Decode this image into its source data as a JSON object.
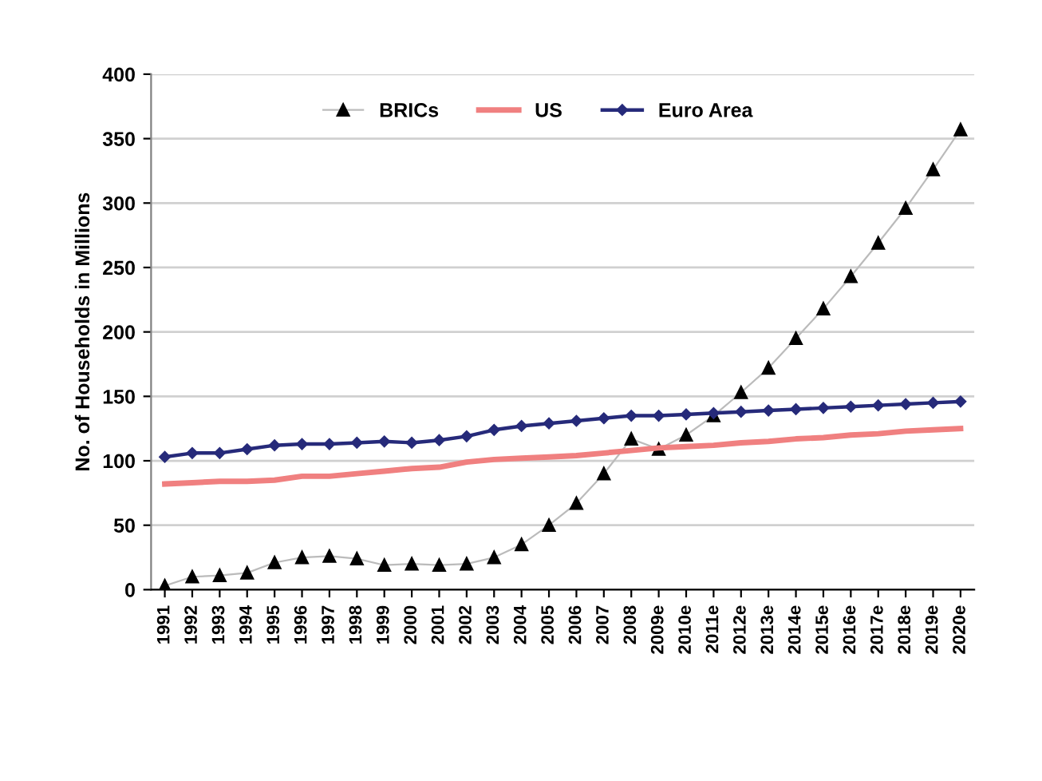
{
  "chart_data": {
    "type": "line",
    "ylabel": "No. of Households in Millions",
    "categories": [
      "1991",
      "1992",
      "1993",
      "1994",
      "1995",
      "1996",
      "1997",
      "1998",
      "1999",
      "2000",
      "2001",
      "2002",
      "2003",
      "2004",
      "2005",
      "2006",
      "2007",
      "2008",
      "2009e",
      "2010e",
      "2011e",
      "2012e",
      "2013e",
      "2014e",
      "2015e",
      "2016e",
      "2017e",
      "2018e",
      "2019e",
      "2020e"
    ],
    "series": [
      {
        "name": "BRICs",
        "color": "#000000",
        "marker": "triangle",
        "values": [
          3,
          10,
          11,
          13,
          21,
          25,
          26,
          24,
          19,
          20,
          19,
          20,
          25,
          35,
          50,
          67,
          90,
          117,
          109,
          120,
          135,
          153,
          172,
          195,
          218,
          243,
          269,
          296,
          326,
          357
        ]
      },
      {
        "name": "US",
        "color": "#f08080",
        "marker": "none",
        "values": [
          82,
          83,
          84,
          84,
          85,
          88,
          88,
          90,
          92,
          94,
          95,
          99,
          101,
          102,
          103,
          104,
          106,
          108,
          110,
          111,
          112,
          114,
          115,
          117,
          118,
          120,
          121,
          123,
          124,
          125
        ]
      },
      {
        "name": "Euro Area",
        "color": "#262a7a",
        "marker": "diamond",
        "values": [
          103,
          106,
          106,
          109,
          112,
          113,
          113,
          114,
          115,
          114,
          116,
          119,
          124,
          127,
          129,
          131,
          133,
          135,
          135,
          136,
          137,
          138,
          139,
          140,
          141,
          142,
          143,
          144,
          145,
          146
        ]
      }
    ],
    "ylim": [
      0,
      400
    ],
    "yticks": [
      0,
      50,
      100,
      150,
      200,
      250,
      300,
      350,
      400
    ],
    "grid": "y",
    "legend": "top"
  }
}
